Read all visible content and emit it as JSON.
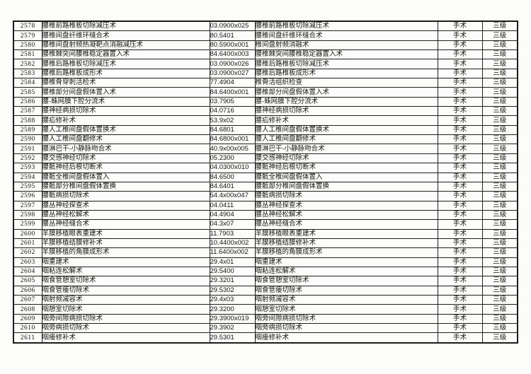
{
  "page": {
    "background_color": "#fcfcfb",
    "text_color": "#161616",
    "border_color": "#1f1f1f"
  },
  "table": {
    "rows": [
      {
        "no": "2578",
        "name": "腰椎前路椎板切除减压术",
        "code": "03.0900x025",
        "std_name": "腰椎前路椎板切除减压术",
        "category": "手术",
        "level": "三级"
      },
      {
        "no": "2579",
        "name": "腰椎间盘纤维环缝合术",
        "code": "80.5401",
        "std_name": "腰椎间盘纤维环缝合术",
        "category": "手术",
        "level": "三级"
      },
      {
        "no": "2580",
        "name": "腰椎间盘射频热凝靶点消融减压术",
        "code": "80.5900x001",
        "std_name": "椎间盘射频消融术",
        "category": "手术",
        "level": "三级"
      },
      {
        "no": "2581",
        "name": "腰椎棘突间腰椎稳定器置入术",
        "code": "84.6400x003",
        "std_name": "腰椎棘突间腰椎稳定器置入术",
        "category": "手术",
        "level": "三级"
      },
      {
        "no": "2582",
        "name": "腰椎后路椎板切除减压术",
        "code": "03.0900x026",
        "std_name": "腰椎后路椎板切除减压术",
        "category": "手术",
        "level": "三级"
      },
      {
        "no": "2583",
        "name": "腰椎后路椎板成形术",
        "code": "03.0900x027",
        "std_name": "腰椎后路椎板成形术",
        "category": "手术",
        "level": "三级"
      },
      {
        "no": "2584",
        "name": "腰椎骨穿刺活检术",
        "code": "77.4904",
        "std_name": "椎骨活组织检查",
        "category": "手术",
        "level": "三级"
      },
      {
        "no": "2585",
        "name": "腰椎部分间盘假体置入术",
        "code": "84.6400x001",
        "std_name": "腰椎部分间盘假体置入术",
        "category": "手术",
        "level": "三级"
      },
      {
        "no": "2586",
        "name": "腰-蛛网膜下腔分流术",
        "code": "03.7905",
        "std_name": "腰-蛛网膜下腔分流术",
        "category": "手术",
        "level": "三级"
      },
      {
        "no": "2587",
        "name": "腰神经病损切除术",
        "code": "04.0716",
        "std_name": "腰神经病损切除术",
        "category": "手术",
        "level": "三级"
      },
      {
        "no": "2588",
        "name": "腰疝修补术",
        "code": "53.9x02",
        "std_name": "腰疝修补术",
        "category": "手术",
        "level": "三级"
      },
      {
        "no": "2589",
        "name": "腰人工椎间盘假体置换术",
        "code": "84.6801",
        "std_name": "腰人工椎间盘假体置换术",
        "category": "手术",
        "level": "三级"
      },
      {
        "no": "2590",
        "name": "腰人工椎间盘翻修术",
        "code": "84.6800x001",
        "std_name": "腰人工椎间盘翻修术",
        "category": "手术",
        "level": "三级"
      },
      {
        "no": "2591",
        "name": "腰淋巴干-小静脉吻合术",
        "code": "40.9x00x005",
        "std_name": "腰淋巴干-小静脉吻合术",
        "category": "手术",
        "level": "三级"
      },
      {
        "no": "2592",
        "name": "腰交感神经切除术",
        "code": "05.2300",
        "std_name": "腰交感神经切除术",
        "category": "手术",
        "level": "三级"
      },
      {
        "no": "2593",
        "name": "腰骶神经后根切断术",
        "code": "04.0300x010",
        "std_name": "腰骶神经后根切断术",
        "category": "手术",
        "level": "三级"
      },
      {
        "no": "2594",
        "name": "腰骶全椎间盘假体置入",
        "code": "84.6500",
        "std_name": "腰骶全椎间盘假体置入",
        "category": "手术",
        "level": "三级"
      },
      {
        "no": "2595",
        "name": "腰骶部分椎间盘假体置换",
        "code": "84.6401",
        "std_name": "腰骶部分椎间盘假体置换",
        "category": "手术",
        "level": "三级"
      },
      {
        "no": "2596",
        "name": "腰骶病损切除术",
        "code": "54.4x00x047",
        "std_name": "腰骶病损切除术",
        "category": "手术",
        "level": "三级"
      },
      {
        "no": "2597",
        "name": "腰丛神经探查术",
        "code": "04.0411",
        "std_name": "腰丛神经探查术",
        "category": "手术",
        "level": "三级"
      },
      {
        "no": "2598",
        "name": "腰丛神经松解术",
        "code": "04.4904",
        "std_name": "腰丛神经松解术",
        "category": "手术",
        "level": "三级"
      },
      {
        "no": "2599",
        "name": "腰丛神经缝合术",
        "code": "04.3x07",
        "std_name": "腰丛神经缝合术",
        "category": "手术",
        "level": "三级"
      },
      {
        "no": "2600",
        "name": "羊膜移植眼表重建术",
        "code": "11.7903",
        "std_name": "羊膜移植眼表重建术",
        "category": "手术",
        "level": "三级"
      },
      {
        "no": "2601",
        "name": "羊膜移植结膜修补术",
        "code": "10.4400x002",
        "std_name": "羊膜移植结膜修补术",
        "category": "手术",
        "level": "三级"
      },
      {
        "no": "2602",
        "name": "羊膜移植的角膜成形术",
        "code": "11.6400x002",
        "std_name": "羊膜移植的角膜成形术",
        "category": "手术",
        "level": "三级"
      },
      {
        "no": "2603",
        "name": "咽重建术",
        "code": "29.4x01",
        "std_name": "咽重建术",
        "category": "手术",
        "level": "三级"
      },
      {
        "no": "2604",
        "name": "咽粘连松解术",
        "code": "29.5400",
        "std_name": "咽粘连松解术",
        "category": "手术",
        "level": "三级"
      },
      {
        "no": "2605",
        "name": "咽食管憩室切除术",
        "code": "29.3201",
        "std_name": "咽食管憩室切除术",
        "category": "手术",
        "level": "三级"
      },
      {
        "no": "2606",
        "name": "咽食管瘘切除术",
        "code": "29.5302",
        "std_name": "咽食管瘘切除术",
        "category": "手术",
        "level": "三级"
      },
      {
        "no": "2607",
        "name": "咽射频减容术",
        "code": "29.4x03",
        "std_name": "咽射频减容术",
        "category": "手术",
        "level": "三级"
      },
      {
        "no": "2608",
        "name": "咽憩室切除术",
        "code": "29.3200",
        "std_name": "咽憩室切除术",
        "category": "手术",
        "level": "三级"
      },
      {
        "no": "2609",
        "name": "咽旁间隙病损切除术",
        "code": "29.3900x019",
        "std_name": "咽旁间隙病损切除术",
        "category": "手术",
        "level": "三级"
      },
      {
        "no": "2610",
        "name": "咽旁病损切除术",
        "code": "29.3902",
        "std_name": "咽旁病损切除术",
        "category": "手术",
        "level": "三级"
      },
      {
        "no": "2611",
        "name": "咽瘘修补术",
        "code": "29.5301",
        "std_name": "咽瘘修补术",
        "category": "手术",
        "level": "三级"
      }
    ]
  }
}
